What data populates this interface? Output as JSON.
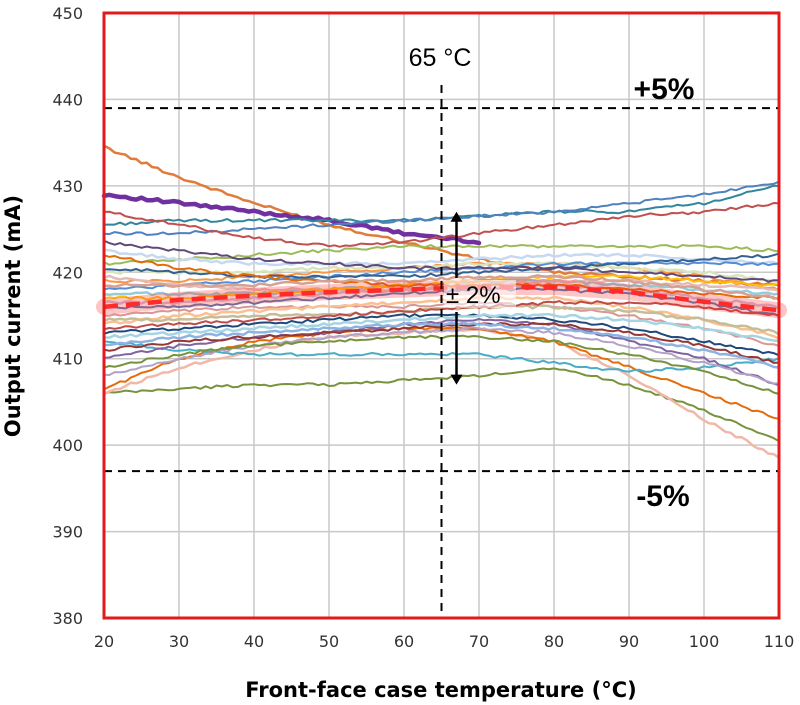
{
  "chart_data": {
    "type": "line",
    "title": "",
    "xlabel": "Front-face case temperature (°C)",
    "ylabel": "Output current (mA)",
    "xlim": [
      20,
      110
    ],
    "ylim": [
      380,
      450
    ],
    "xticks": [
      "20",
      "30",
      "40",
      "50",
      "60",
      "70",
      "80",
      "90",
      "100",
      "110"
    ],
    "yticks": [
      "380",
      "390",
      "400",
      "410",
      "420",
      "430",
      "440",
      "450"
    ],
    "grid": true,
    "legend": "none",
    "colors": {
      "frame": "#e31a1c",
      "grid": "#c8c8c8",
      "mean": "#ff2a2a",
      "guide": "#000000"
    },
    "reference_lines": {
      "upper": {
        "y": 439,
        "label": "+5%"
      },
      "lower": {
        "y": 397,
        "label": "-5%"
      },
      "vertical": {
        "x": 65,
        "label": "65 °C"
      }
    },
    "spread_annotation": {
      "label": "± 2%",
      "x": 67,
      "y_top": 427,
      "y_bottom": 407
    },
    "x": [
      20,
      30,
      40,
      50,
      60,
      70,
      80,
      90,
      100,
      110
    ],
    "mean_series": {
      "style": "dashed",
      "values": [
        416,
        416.8,
        417.3,
        417.7,
        418,
        418.3,
        418.3,
        417.7,
        416.6,
        415.6
      ]
    },
    "series": [
      {
        "color": "#e07b39",
        "width": 2.5,
        "values": [
          434.5,
          431,
          428,
          425.5,
          423.5,
          421.5,
          420,
          419.5,
          419,
          418.5
        ]
      },
      {
        "color": "#7030a0",
        "width": 4.5,
        "values": [
          429,
          428,
          427,
          426,
          424.5,
          423.5,
          null,
          null,
          null,
          null
        ]
      },
      {
        "color": "#31859c",
        "width": 2,
        "values": [
          425.5,
          426,
          426,
          426,
          426,
          426.5,
          427,
          427,
          428,
          430
        ]
      },
      {
        "color": "#4f81bd",
        "width": 2,
        "values": [
          424.5,
          424.5,
          425,
          425.5,
          426,
          426.5,
          427,
          428,
          429,
          430.5
        ]
      },
      {
        "color": "#c0504d",
        "width": 2,
        "values": [
          427,
          425.5,
          424,
          423,
          423.5,
          424.5,
          425.5,
          426.5,
          427,
          428
        ]
      },
      {
        "color": "#77933c",
        "width": 2,
        "values": [
          406,
          406.5,
          407,
          407,
          407.5,
          408,
          409,
          407,
          404,
          400.5
        ]
      },
      {
        "color": "#f0b8a8",
        "width": 2.5,
        "values": [
          406,
          409,
          411,
          412.5,
          413,
          413.5,
          412,
          408,
          403,
          398.5
        ]
      },
      {
        "color": "#e46c0a",
        "width": 2,
        "values": [
          406.5,
          410,
          412,
          413,
          413.5,
          413.5,
          412,
          409,
          406,
          403
        ]
      },
      {
        "color": "#4bacc6",
        "width": 2,
        "values": [
          412,
          411,
          410.5,
          410.5,
          410.5,
          410.5,
          409.5,
          408.5,
          409,
          410
        ]
      },
      {
        "color": "#9bbb59",
        "width": 2,
        "values": [
          421,
          421.5,
          422,
          422.5,
          423,
          423,
          423,
          423,
          423,
          422.5
        ]
      },
      {
        "color": "#8064a2",
        "width": 2,
        "values": [
          410,
          411.5,
          412.5,
          413,
          414,
          414.5,
          414,
          412,
          410,
          407
        ]
      },
      {
        "color": "#1f497d",
        "width": 2,
        "values": [
          413,
          413.5,
          414,
          414.5,
          415,
          415,
          414.5,
          413.5,
          412,
          410.5
        ]
      },
      {
        "color": "#f79646",
        "width": 2,
        "values": [
          419,
          419,
          419.5,
          420,
          420.5,
          421,
          421,
          420.5,
          419.5,
          418
        ]
      },
      {
        "color": "#c6d9f1",
        "width": 2.5,
        "values": [
          422.5,
          421.5,
          421,
          421,
          421,
          421.5,
          422,
          422,
          421.5,
          421
        ]
      },
      {
        "color": "#d99694",
        "width": 2,
        "values": [
          415,
          415.5,
          416,
          416,
          416,
          416.5,
          416,
          415,
          413.5,
          411.5
        ]
      },
      {
        "color": "#b3a2c7",
        "width": 2,
        "values": [
          408,
          410,
          411.5,
          412.5,
          413,
          413.5,
          413,
          411.5,
          409.5,
          407
        ]
      },
      {
        "color": "#92cddc",
        "width": 2.5,
        "values": [
          417.5,
          417.5,
          417.5,
          418,
          418.5,
          419,
          419,
          418.5,
          418,
          417.5
        ]
      },
      {
        "color": "#fac090",
        "width": 2.5,
        "values": [
          414,
          415,
          415.5,
          416,
          416.5,
          417,
          417,
          416,
          414.5,
          412.5
        ]
      },
      {
        "color": "#d7e4bd",
        "width": 2.5,
        "values": [
          420,
          420,
          420,
          420.5,
          420.5,
          421,
          421,
          420.5,
          420,
          419
        ]
      },
      {
        "color": "#ccc1da",
        "width": 2.5,
        "values": [
          416.5,
          416.5,
          417,
          417.5,
          418,
          418.5,
          418.5,
          418,
          417,
          416
        ]
      },
      {
        "color": "#548dd4",
        "width": 2,
        "values": [
          418,
          418.5,
          419,
          419.5,
          420,
          420.5,
          421,
          421,
          421,
          421
        ]
      },
      {
        "color": "#953734",
        "width": 2,
        "values": [
          411,
          412,
          412.5,
          413,
          413.5,
          414,
          414,
          413,
          411.5,
          409.5
        ]
      },
      {
        "color": "#76923c",
        "width": 2,
        "values": [
          409,
          410.5,
          411.5,
          412,
          412.5,
          412.5,
          412,
          410.5,
          408.5,
          406
        ]
      },
      {
        "color": "#e5b9b7",
        "width": 2.5,
        "values": [
          419.5,
          418.5,
          418,
          418,
          418,
          418.5,
          419,
          419,
          418.5,
          418
        ]
      },
      {
        "color": "#a5d5e2",
        "width": 2.5,
        "values": [
          412.5,
          413,
          413.5,
          414,
          414.5,
          415,
          415,
          414.5,
          413.5,
          412
        ]
      },
      {
        "color": "#ffc000",
        "width": 2,
        "values": [
          417,
          417,
          417.5,
          418,
          418.5,
          419,
          419.5,
          419.5,
          419,
          418.5
        ]
      },
      {
        "color": "#366092",
        "width": 2,
        "values": [
          420.5,
          420,
          419.5,
          419.5,
          419.5,
          420,
          420.5,
          421,
          421.5,
          422
        ]
      },
      {
        "color": "#c4bd97",
        "width": 2.5,
        "values": [
          414.5,
          414.5,
          415,
          415,
          415.5,
          416,
          416,
          415.5,
          414.5,
          413
        ]
      },
      {
        "color": "#e26b0a",
        "width": 2,
        "values": [
          422,
          420.5,
          419.5,
          419,
          418.5,
          418.5,
          418.5,
          418,
          417.5,
          417
        ]
      },
      {
        "color": "#60497a",
        "width": 2,
        "values": [
          423.5,
          422.5,
          421.5,
          421,
          420.5,
          420.5,
          420.5,
          420,
          419.5,
          419
        ]
      },
      {
        "color": "#8db3e2",
        "width": 2.5,
        "values": [
          411.5,
          412.5,
          413,
          413.5,
          414,
          414,
          413.5,
          412.5,
          411,
          409
        ]
      },
      {
        "color": "#d8a090",
        "width": 2.5,
        "values": [
          418.5,
          418.5,
          418.5,
          419,
          419,
          419.5,
          419.5,
          419,
          418,
          417
        ]
      },
      {
        "color": "#4a7ebb",
        "width": 2,
        "values": [
          416,
          416,
          416.5,
          417,
          417.5,
          418,
          418,
          417.5,
          416.5,
          415
        ]
      },
      {
        "color": "#be4b48",
        "width": 2,
        "values": [
          413.5,
          414,
          414.5,
          415,
          415.5,
          416,
          416.5,
          416.5,
          416,
          415
        ]
      }
    ]
  }
}
